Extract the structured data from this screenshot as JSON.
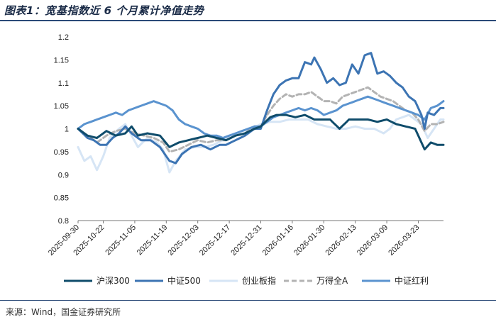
{
  "figure": {
    "title": "图表1：宽基指数近 6 个月累计净值走势",
    "source": "来源：Wind，国金证券研究所"
  },
  "colors": {
    "hs300": "#0f4c6b",
    "zz500": "#3c74b3",
    "cyb": "#d6e5f5",
    "wdqa": "#b3b3b3",
    "zzhl": "#5a93cf",
    "rule": "#2b4a78"
  },
  "chart_data": {
    "type": "line",
    "title": "宽基指数近 6 个月累计净值走势",
    "xlabel": "",
    "ylabel": "",
    "ylim": [
      0.8,
      1.2
    ],
    "yticks": [
      "0.8",
      "0.85",
      "0.9",
      "0.95",
      "1",
      "1.05",
      "1.1",
      "1.15",
      "1.2"
    ],
    "ytick_values": [
      0.8,
      0.85,
      0.9,
      0.95,
      1.0,
      1.05,
      1.1,
      1.15,
      1.2
    ],
    "xticks": [
      "2025-09-30",
      "2025-10-22",
      "2025-11-05",
      "2025-11-19",
      "2025-12-03",
      "2025-12-17",
      "2025-12-31",
      "2026-01-16",
      "2026-01-30",
      "2026-02-13",
      "2026-03-09",
      "2026-03-23"
    ],
    "xtick_index": [
      0,
      8,
      18,
      28,
      38,
      48,
      58,
      68,
      78,
      88,
      98,
      108
    ],
    "n_points": 117,
    "grid": false,
    "legend_position": "bottom",
    "series": [
      {
        "key": "hs300",
        "name": "沪深300",
        "style": "solid",
        "anchors": [
          [
            0,
            1.0
          ],
          [
            3,
            0.985
          ],
          [
            6,
            0.98
          ],
          [
            9,
            0.995
          ],
          [
            12,
            0.985
          ],
          [
            15,
            0.99
          ],
          [
            17,
            1.005
          ],
          [
            19,
            0.985
          ],
          [
            22,
            0.99
          ],
          [
            26,
            0.985
          ],
          [
            29,
            0.96
          ],
          [
            32,
            0.97
          ],
          [
            35,
            0.975
          ],
          [
            38,
            0.98
          ],
          [
            41,
            0.985
          ],
          [
            44,
            0.98
          ],
          [
            47,
            0.975
          ],
          [
            50,
            0.985
          ],
          [
            53,
            0.99
          ],
          [
            56,
            1.0
          ],
          [
            58,
            1.005
          ],
          [
            61,
            1.025
          ],
          [
            63,
            1.03
          ],
          [
            66,
            1.03
          ],
          [
            69,
            1.025
          ],
          [
            72,
            1.03
          ],
          [
            75,
            1.02
          ],
          [
            78,
            1.02
          ],
          [
            80,
            1.02
          ],
          [
            83,
            1.0
          ],
          [
            86,
            1.02
          ],
          [
            89,
            1.02
          ],
          [
            92,
            1.02
          ],
          [
            95,
            1.015
          ],
          [
            98,
            1.02
          ],
          [
            101,
            1.01
          ],
          [
            104,
            1.005
          ],
          [
            107,
            1.0
          ],
          [
            109,
            0.97
          ],
          [
            110,
            0.955
          ],
          [
            112,
            0.97
          ],
          [
            114,
            0.965
          ],
          [
            116,
            0.965
          ]
        ]
      },
      {
        "key": "zz500",
        "name": "中证500",
        "style": "solid",
        "anchors": [
          [
            0,
            1.0
          ],
          [
            3,
            0.98
          ],
          [
            5,
            0.975
          ],
          [
            7,
            0.965
          ],
          [
            9,
            0.965
          ],
          [
            11,
            0.98
          ],
          [
            13,
            0.99
          ],
          [
            15,
            1.005
          ],
          [
            17,
            0.99
          ],
          [
            20,
            0.975
          ],
          [
            23,
            0.975
          ],
          [
            26,
            0.96
          ],
          [
            29,
            0.93
          ],
          [
            31,
            0.925
          ],
          [
            33,
            0.945
          ],
          [
            36,
            0.96
          ],
          [
            39,
            0.965
          ],
          [
            42,
            0.955
          ],
          [
            45,
            0.965
          ],
          [
            47,
            0.965
          ],
          [
            50,
            0.975
          ],
          [
            53,
            0.985
          ],
          [
            56,
            1.0
          ],
          [
            58,
            1.0
          ],
          [
            60,
            1.04
          ],
          [
            62,
            1.075
          ],
          [
            64,
            1.095
          ],
          [
            66,
            1.105
          ],
          [
            68,
            1.11
          ],
          [
            70,
            1.11
          ],
          [
            72,
            1.145
          ],
          [
            74,
            1.14
          ],
          [
            75,
            1.155
          ],
          [
            77,
            1.13
          ],
          [
            79,
            1.1
          ],
          [
            81,
            1.11
          ],
          [
            83,
            1.095
          ],
          [
            85,
            1.1
          ],
          [
            87,
            1.14
          ],
          [
            89,
            1.12
          ],
          [
            91,
            1.16
          ],
          [
            93,
            1.165
          ],
          [
            95,
            1.12
          ],
          [
            97,
            1.125
          ],
          [
            99,
            1.115
          ],
          [
            101,
            1.1
          ],
          [
            103,
            1.09
          ],
          [
            105,
            1.07
          ],
          [
            107,
            1.06
          ],
          [
            109,
            1.03
          ],
          [
            110,
            1.0
          ],
          [
            111,
            1.035
          ],
          [
            113,
            1.03
          ],
          [
            115,
            1.045
          ],
          [
            116,
            1.045
          ]
        ]
      },
      {
        "key": "cyb",
        "name": "创业板指",
        "style": "solid",
        "anchors": [
          [
            0,
            0.96
          ],
          [
            2,
            0.93
          ],
          [
            4,
            0.94
          ],
          [
            6,
            0.91
          ],
          [
            8,
            0.94
          ],
          [
            10,
            0.98
          ],
          [
            13,
            1.0
          ],
          [
            15,
            1.01
          ],
          [
            17,
            0.985
          ],
          [
            19,
            0.96
          ],
          [
            22,
            0.98
          ],
          [
            25,
            0.97
          ],
          [
            27,
            0.955
          ],
          [
            29,
            0.905
          ],
          [
            31,
            0.93
          ],
          [
            34,
            0.955
          ],
          [
            37,
            0.96
          ],
          [
            40,
            0.96
          ],
          [
            43,
            0.965
          ],
          [
            46,
            0.975
          ],
          [
            49,
            0.985
          ],
          [
            52,
            0.995
          ],
          [
            55,
            1.0
          ],
          [
            58,
            1.01
          ],
          [
            61,
            1.015
          ],
          [
            64,
            1.015
          ],
          [
            67,
            1.02
          ],
          [
            70,
            1.02
          ],
          [
            73,
            1.02
          ],
          [
            76,
            1.01
          ],
          [
            79,
            1.005
          ],
          [
            82,
            1.0
          ],
          [
            85,
            1.0
          ],
          [
            88,
            1.005
          ],
          [
            91,
            1.0
          ],
          [
            94,
            1.0
          ],
          [
            97,
            0.99
          ],
          [
            99,
            1.0
          ],
          [
            101,
            1.02
          ],
          [
            103,
            1.025
          ],
          [
            105,
            1.03
          ],
          [
            107,
            1.02
          ],
          [
            109,
            1.01
          ],
          [
            111,
            0.98
          ],
          [
            113,
            1.0
          ],
          [
            115,
            1.02
          ],
          [
            116,
            1.02
          ]
        ]
      },
      {
        "key": "wdqa",
        "name": "万得全A",
        "style": "dashed",
        "anchors": [
          [
            0,
            1.0
          ],
          [
            3,
            0.985
          ],
          [
            6,
            0.97
          ],
          [
            9,
            0.985
          ],
          [
            12,
            0.995
          ],
          [
            15,
            1.0
          ],
          [
            18,
            0.99
          ],
          [
            21,
            0.985
          ],
          [
            24,
            0.98
          ],
          [
            27,
            0.97
          ],
          [
            29,
            0.95
          ],
          [
            32,
            0.955
          ],
          [
            35,
            0.965
          ],
          [
            38,
            0.975
          ],
          [
            41,
            0.97
          ],
          [
            44,
            0.975
          ],
          [
            47,
            0.975
          ],
          [
            50,
            0.985
          ],
          [
            53,
            0.99
          ],
          [
            56,
            1.005
          ],
          [
            58,
            1.005
          ],
          [
            60,
            1.03
          ],
          [
            62,
            1.05
          ],
          [
            64,
            1.065
          ],
          [
            66,
            1.075
          ],
          [
            68,
            1.07
          ],
          [
            70,
            1.075
          ],
          [
            72,
            1.075
          ],
          [
            74,
            1.08
          ],
          [
            76,
            1.07
          ],
          [
            78,
            1.06
          ],
          [
            80,
            1.06
          ],
          [
            82,
            1.055
          ],
          [
            84,
            1.07
          ],
          [
            86,
            1.075
          ],
          [
            88,
            1.08
          ],
          [
            90,
            1.085
          ],
          [
            92,
            1.09
          ],
          [
            94,
            1.08
          ],
          [
            96,
            1.07
          ],
          [
            98,
            1.065
          ],
          [
            100,
            1.06
          ],
          [
            102,
            1.05
          ],
          [
            104,
            1.04
          ],
          [
            106,
            1.035
          ],
          [
            108,
            1.02
          ],
          [
            110,
            0.995
          ],
          [
            112,
            1.01
          ],
          [
            114,
            1.01
          ],
          [
            116,
            1.015
          ]
        ]
      },
      {
        "key": "zzhl",
        "name": "中证红利",
        "style": "solid",
        "anchors": [
          [
            0,
            1.0
          ],
          [
            2,
            1.01
          ],
          [
            4,
            1.015
          ],
          [
            6,
            1.02
          ],
          [
            8,
            1.025
          ],
          [
            10,
            1.03
          ],
          [
            12,
            1.035
          ],
          [
            14,
            1.03
          ],
          [
            16,
            1.04
          ],
          [
            18,
            1.045
          ],
          [
            20,
            1.05
          ],
          [
            22,
            1.055
          ],
          [
            24,
            1.06
          ],
          [
            26,
            1.055
          ],
          [
            28,
            1.05
          ],
          [
            30,
            1.04
          ],
          [
            32,
            1.02
          ],
          [
            34,
            1.01
          ],
          [
            36,
            1.005
          ],
          [
            38,
            1.0
          ],
          [
            40,
            0.99
          ],
          [
            42,
            0.985
          ],
          [
            44,
            0.985
          ],
          [
            46,
            0.98
          ],
          [
            48,
            0.985
          ],
          [
            50,
            0.99
          ],
          [
            52,
            0.995
          ],
          [
            54,
            1.0
          ],
          [
            56,
            1.005
          ],
          [
            58,
            1.005
          ],
          [
            60,
            1.015
          ],
          [
            62,
            1.025
          ],
          [
            64,
            1.03
          ],
          [
            66,
            1.035
          ],
          [
            68,
            1.04
          ],
          [
            70,
            1.045
          ],
          [
            72,
            1.04
          ],
          [
            74,
            1.045
          ],
          [
            76,
            1.04
          ],
          [
            78,
            1.03
          ],
          [
            80,
            1.035
          ],
          [
            82,
            1.04
          ],
          [
            84,
            1.05
          ],
          [
            86,
            1.055
          ],
          [
            88,
            1.06
          ],
          [
            90,
            1.065
          ],
          [
            92,
            1.07
          ],
          [
            94,
            1.065
          ],
          [
            96,
            1.06
          ],
          [
            98,
            1.055
          ],
          [
            100,
            1.05
          ],
          [
            102,
            1.045
          ],
          [
            104,
            1.04
          ],
          [
            106,
            1.035
          ],
          [
            108,
            1.03
          ],
          [
            110,
            1.02
          ],
          [
            112,
            1.045
          ],
          [
            114,
            1.05
          ],
          [
            116,
            1.06
          ]
        ]
      }
    ]
  }
}
